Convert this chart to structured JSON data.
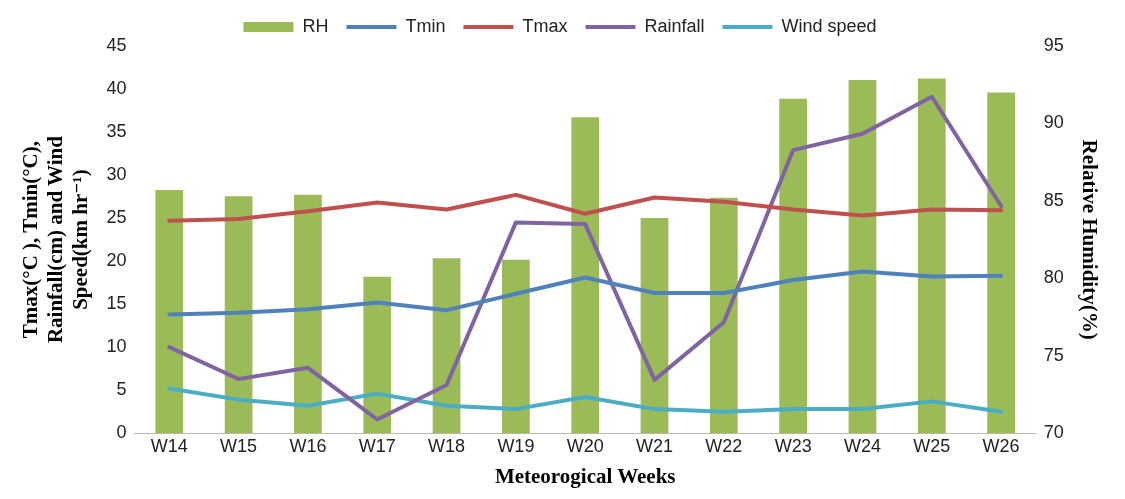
{
  "chart_data": {
    "type": "bar",
    "xlabel": "Meteorogical Weeks",
    "ylabel": "Tmax(°C ), Tmin(°C), Rainfall(cm) and Wind Speed(km hr⁻¹)",
    "y2label": "Relative Humidity(%)",
    "categories": [
      "W14",
      "W15",
      "W16",
      "W17",
      "W18",
      "W19",
      "W20",
      "W21",
      "W22",
      "W23",
      "W24",
      "W25",
      "W26"
    ],
    "series": [
      {
        "name": "RH",
        "axis": "y2",
        "color": "#9bbb59",
        "values": [
          85.7,
          85.3,
          85.4,
          80.1,
          81.3,
          81.2,
          90.4,
          83.9,
          85.2,
          91.6,
          92.8,
          92.9,
          92.0
        ]
      },
      {
        "name": "Tmin",
        "type": "line",
        "color": "#4f81bd",
        "values": [
          13.8,
          14.0,
          14.4,
          15.2,
          14.3,
          16.2,
          18.1,
          16.3,
          16.3,
          17.8,
          18.8,
          18.2,
          18.3
        ]
      },
      {
        "name": "Tmax",
        "type": "line",
        "color": "#c0504d",
        "values": [
          24.7,
          24.9,
          25.8,
          26.8,
          26.0,
          27.7,
          25.5,
          27.4,
          26.9,
          26.0,
          25.3,
          26.0,
          25.9
        ]
      },
      {
        "name": "Rainfall",
        "type": "line",
        "color": "#8064a2",
        "values": [
          10.0,
          6.3,
          7.6,
          1.6,
          5.6,
          24.5,
          24.3,
          6.2,
          12.9,
          32.9,
          34.8,
          39.1,
          26.4
        ]
      },
      {
        "name": "Wind speed",
        "type": "line",
        "color": "#4bacc6",
        "values": [
          5.2,
          3.9,
          3.2,
          4.6,
          3.2,
          2.8,
          4.2,
          2.8,
          2.5,
          2.8,
          2.8,
          3.7,
          2.5
        ]
      }
    ],
    "ylim": [
      0,
      45
    ],
    "yticks": [
      0,
      5,
      10,
      15,
      20,
      25,
      30,
      35,
      40,
      45
    ],
    "y2lim": [
      70,
      95
    ],
    "y2ticks": [
      70,
      75,
      80,
      85,
      90,
      95
    ],
    "grid": false,
    "legend": "top",
    "marker": "none",
    "line_style": "solid"
  }
}
